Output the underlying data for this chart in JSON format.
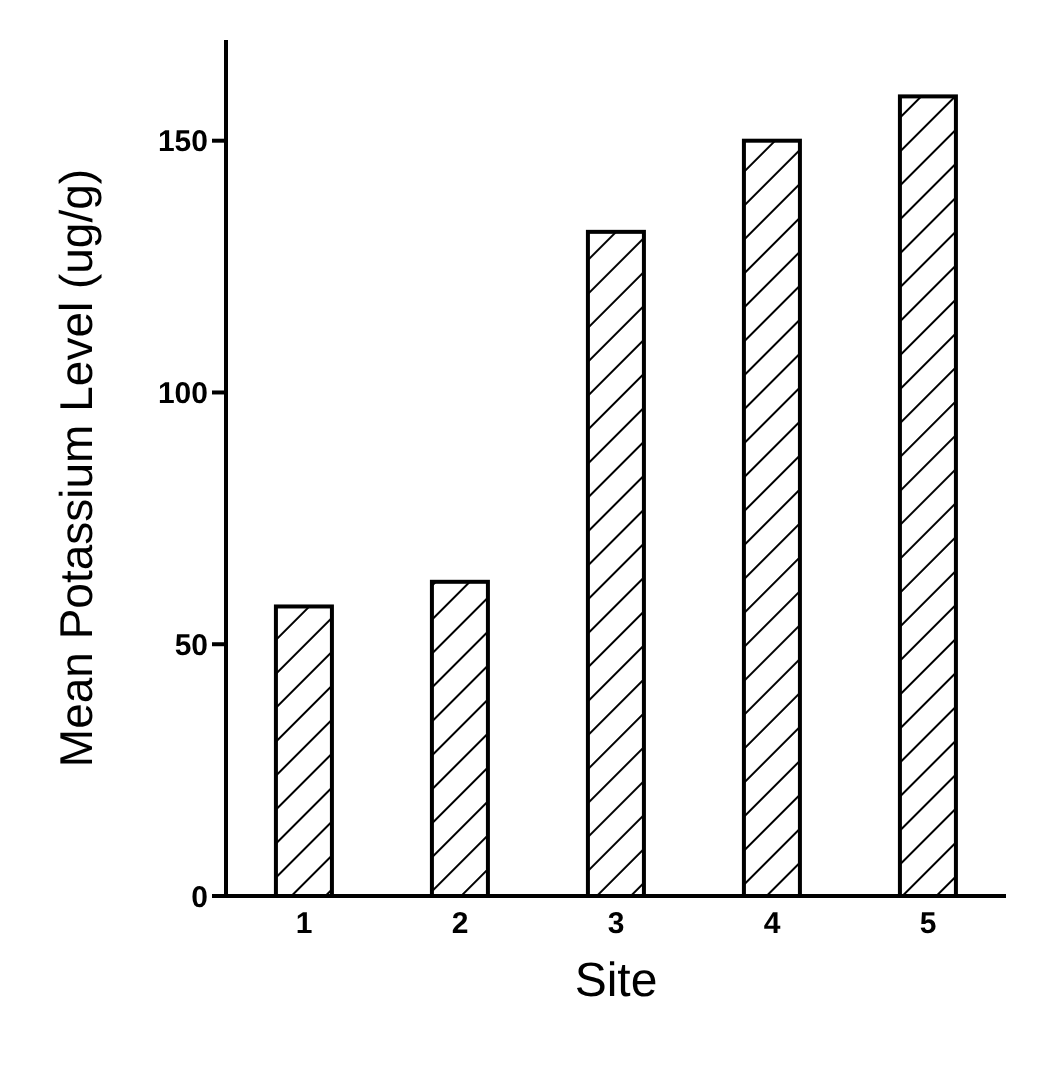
{
  "chart_data": {
    "type": "bar",
    "xlabel": "Site",
    "ylabel": "Mean Potassium Level (ug/g)",
    "categories": [
      "1",
      "2",
      "3",
      "4",
      "5"
    ],
    "values": [
      57.5,
      62.4,
      131.9,
      150,
      158.8
    ],
    "color": "#000000",
    "ylim": [
      0,
      170
    ],
    "yticks": [
      0,
      50,
      100,
      150
    ],
    "grid": false
  }
}
